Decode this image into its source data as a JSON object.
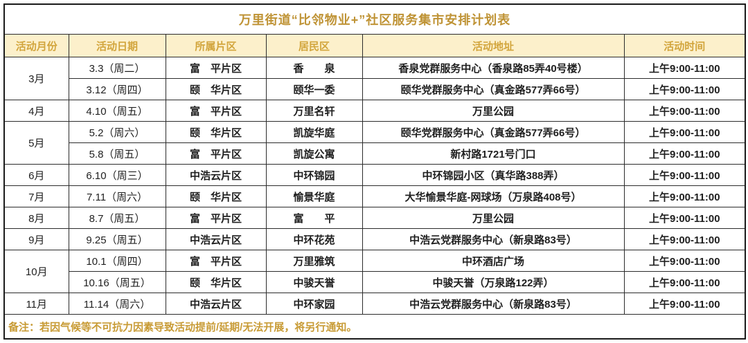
{
  "table": {
    "title": "万里街道“比邻物业+”社区服务集市安排计划表",
    "headers": [
      "活动月份",
      "活动日期",
      "所属片区",
      "居民区",
      "活动地址",
      "活动时间"
    ],
    "rows": [
      {
        "month": "3月",
        "month_rowspan": 2,
        "date": "3.3（周二）",
        "district": "富　平片区",
        "community": "香　　泉",
        "address": "香泉党群服务中心（香泉路85弄40号楼）",
        "time": "上午9:00-11:00"
      },
      {
        "month": null,
        "month_rowspan": 0,
        "date": "3.12（周四）",
        "district": "颐　华片区",
        "community": "颐华一委",
        "address": "颐华党群服务中心（真金路577弄66号）",
        "time": "上午9:00-11:00"
      },
      {
        "month": "4月",
        "month_rowspan": 1,
        "date": "4.10（周五）",
        "district": "富　平片区",
        "community": "万里名轩",
        "address": "万里公园",
        "time": "上午9:00-11:00"
      },
      {
        "month": "5月",
        "month_rowspan": 2,
        "date": "5.2（周六）",
        "district": "颐　华片区",
        "community": "凯旋华庭",
        "address": "颐华党群服务中心（真金路577弄66号）",
        "time": "上午9:00-11:00"
      },
      {
        "month": null,
        "month_rowspan": 0,
        "date": "5.8（周五）",
        "district": "富　平片区",
        "community": "凯旋公寓",
        "address": "新村路1721号门口",
        "time": "上午9:00-11:00"
      },
      {
        "month": "6月",
        "month_rowspan": 1,
        "date": "6.10（周三）",
        "district": "中浩云片区",
        "community": "中环锦园",
        "address": "中环锦园小区（真华路388弄）",
        "time": "上午9:00-11:00"
      },
      {
        "month": "7月",
        "month_rowspan": 1,
        "date": "7.11（周六）",
        "district": "颐　华片区",
        "community": "愉景华庭",
        "address": "大华愉景华庭-网球场（万泉路408号）",
        "time": "上午9:00-11:00"
      },
      {
        "month": "8月",
        "month_rowspan": 1,
        "date": "8.7（周五）",
        "district": "富　平片区",
        "community": "富　　平",
        "address": "万里公园",
        "time": "上午9:00-11:00"
      },
      {
        "month": "9月",
        "month_rowspan": 1,
        "date": "9.25（周五）",
        "district": "中浩云片区",
        "community": "中环花苑",
        "address": "中浩云党群服务中心（新泉路83号）",
        "time": "上午9:00-11:00"
      },
      {
        "month": "10月",
        "month_rowspan": 2,
        "date": "10.1（周四）",
        "district": "富　平片区",
        "community": "万里雅筑",
        "address": "中环酒店广场",
        "time": "上午9:00-11:00"
      },
      {
        "month": null,
        "month_rowspan": 0,
        "date": "10.16（周五）",
        "district": "颐　华片区",
        "community": "中骏天誉",
        "address": "中骏天誉（万泉路122弄）",
        "time": "上午9:00-11:00"
      },
      {
        "month": "11月",
        "month_rowspan": 1,
        "date": "11.14（周六）",
        "district": "中浩云片区",
        "community": "中环家园",
        "address": "中浩云党群服务中心（新泉路83号）",
        "time": "上午9:00-11:00"
      }
    ],
    "footer_note": "备注：若因气候等不可抗力因素导致活动提前/延期/无法开展，将另行通知。"
  },
  "colors": {
    "title_text": "#bf9335",
    "header_bg": "#fcf0cb",
    "header_text": "#d2a53c",
    "body_text": "#1f1f1f",
    "footer_text": "#c89b35",
    "border": "#2b2b2b"
  }
}
